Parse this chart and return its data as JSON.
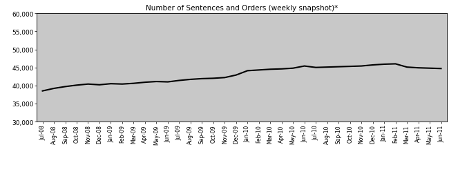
{
  "title": "Number of Sentences and Orders (weekly snapshot)*",
  "ylim": [
    30000,
    60000
  ],
  "yticks": [
    30000,
    35000,
    40000,
    45000,
    50000,
    55000,
    60000
  ],
  "background_color": "#c8c8c8",
  "line_color": "#000000",
  "x_labels": [
    "Jul-08",
    "Aug-08",
    "Sep-08",
    "Oct-08",
    "Nov-08",
    "Dec-08",
    "Jan-09",
    "Feb-09",
    "Mar-09",
    "Apr-09",
    "May-09",
    "Jun-09",
    "Jul-09",
    "Aug-09",
    "Sep-09",
    "Oct-09",
    "Nov-09",
    "Dec-09",
    "Jan-10",
    "Feb-10",
    "Mar-10",
    "Apr-10",
    "May-10",
    "Jun-10",
    "Jul-10",
    "Aug-10",
    "Sep-10",
    "Oct-10",
    "Nov-10",
    "Dec-10",
    "Jan-11",
    "Feb-11",
    "Mar-11",
    "Apr-11",
    "May-11",
    "Jun-11"
  ],
  "y_values": [
    38500,
    39200,
    39700,
    40100,
    40400,
    40200,
    40500,
    40400,
    40600,
    40900,
    41100,
    41000,
    41400,
    41700,
    41900,
    42000,
    42200,
    42900,
    44100,
    44300,
    44500,
    44600,
    44800,
    45400,
    45000,
    45100,
    45200,
    45300,
    45400,
    45700,
    45900,
    46000,
    45100,
    44900,
    44800,
    44700
  ],
  "title_fontsize": 7.5,
  "ylabel_fontsize": 6.5,
  "xlabel_fontsize": 5.5,
  "linewidth": 1.5
}
